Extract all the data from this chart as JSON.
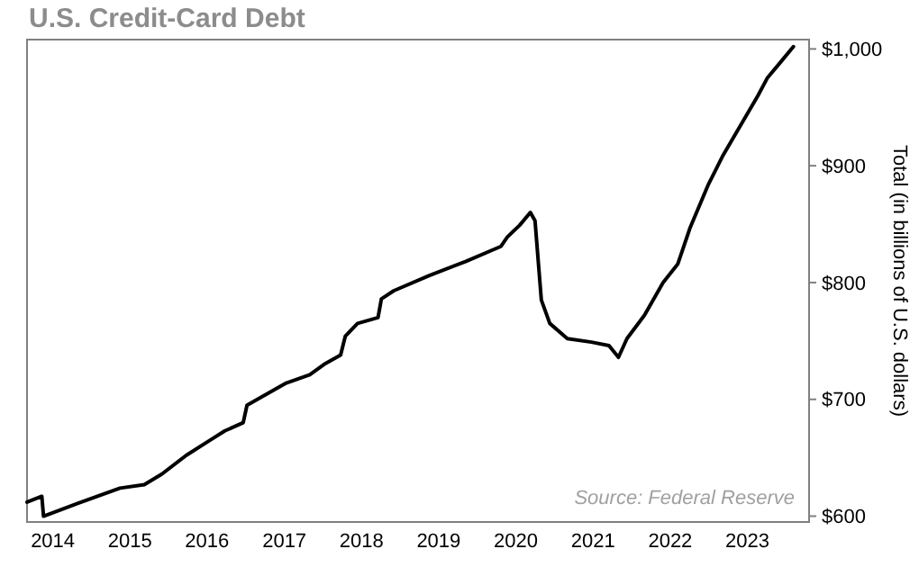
{
  "chart_data": {
    "type": "line",
    "title": "U.S. Credit-Card Debt",
    "ylabel": "Total (in billions of U.S. dollars)",
    "annotations": [
      "Source: Federal Reserve"
    ],
    "x": [
      "2013-09-01",
      "2013-11-10",
      "2013-11-18",
      "2014-05-01",
      "2014-11-15",
      "2015-03-10",
      "2015-06-01",
      "2015-09-24",
      "2016-01-15",
      "2016-03-25",
      "2016-06-20",
      "2016-07-08",
      "2016-10-23",
      "2017-01-10",
      "2017-05-01",
      "2017-07-08",
      "2017-09-24",
      "2017-10-16",
      "2017-12-13",
      "2018-03-20",
      "2018-04-05",
      "2018-06-03",
      "2018-11-18",
      "2019-05-08",
      "2019-10-23",
      "2019-11-22",
      "2020-01-19",
      "2020-03-10",
      "2020-04-01",
      "2020-05-01",
      "2020-06-10",
      "2020-09-01",
      "2020-12-24",
      "2021-03-17",
      "2021-05-01",
      "2021-06-10",
      "2021-09-01",
      "2021-11-28",
      "2022-02-06",
      "2022-04-05",
      "2022-06-28",
      "2022-09-05",
      "2022-11-28",
      "2023-02-20",
      "2023-04-05",
      "2023-06-13",
      "2023-08-07"
    ],
    "series": [
      {
        "color": "#000000",
        "values": [
          612,
          617,
          600,
          611,
          624,
          627,
          636,
          652,
          665,
          673,
          680,
          695,
          706,
          714,
          721,
          730,
          738,
          754,
          765,
          770,
          786,
          793,
          806,
          818,
          831,
          839,
          849,
          860,
          853,
          785,
          765,
          752,
          749,
          746,
          736,
          752,
          772,
          800,
          816,
          847,
          883,
          908,
          934,
          960,
          975,
          990,
          1002
        ]
      }
    ],
    "xlim": [
      "2013-09-01",
      "2023-10-20"
    ],
    "xticks": [
      {
        "value": "2014-01-01",
        "label": "2014"
      },
      {
        "value": "2015-01-01",
        "label": "2015"
      },
      {
        "value": "2016-01-01",
        "label": "2016"
      },
      {
        "value": "2017-01-01",
        "label": "2017"
      },
      {
        "value": "2018-01-01",
        "label": "2018"
      },
      {
        "value": "2019-01-01",
        "label": "2019"
      },
      {
        "value": "2020-01-01",
        "label": "2020"
      },
      {
        "value": "2021-01-01",
        "label": "2021"
      },
      {
        "value": "2022-01-01",
        "label": "2022"
      },
      {
        "value": "2023-01-01",
        "label": "2023"
      }
    ],
    "ylim": [
      595,
      1008
    ],
    "yticks": [
      {
        "value": 600,
        "label": "$600"
      },
      {
        "value": 700,
        "label": "$700"
      },
      {
        "value": 800,
        "label": "$800"
      },
      {
        "value": 900,
        "label": "$900"
      },
      {
        "value": 1000,
        "label": "$1,000"
      }
    ],
    "grid": false,
    "marker": "none",
    "line_style": "solid"
  }
}
